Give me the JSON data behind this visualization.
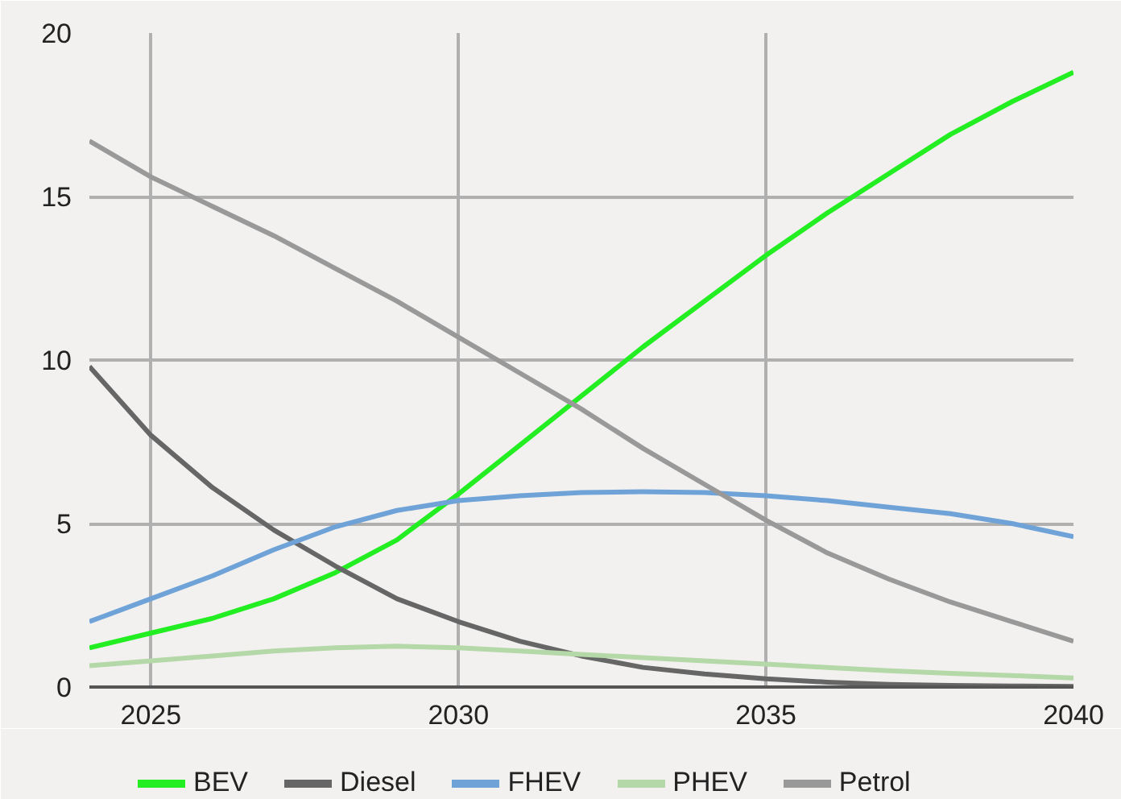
{
  "chart_data": {
    "type": "line",
    "x": [
      2024,
      2025,
      2026,
      2027,
      2028,
      2029,
      2030,
      2031,
      2032,
      2033,
      2034,
      2035,
      2036,
      2037,
      2038,
      2039,
      2040
    ],
    "series": [
      {
        "name": "BEV",
        "color": "#22ee22",
        "values": [
          1.2,
          1.65,
          2.1,
          2.7,
          3.5,
          4.5,
          5.9,
          7.4,
          8.9,
          10.4,
          11.8,
          13.2,
          14.5,
          15.7,
          16.9,
          17.9,
          18.8
        ]
      },
      {
        "name": "Diesel",
        "color": "#666666",
        "values": [
          9.8,
          7.7,
          6.1,
          4.8,
          3.7,
          2.7,
          2.0,
          1.4,
          0.95,
          0.6,
          0.4,
          0.25,
          0.15,
          0.08,
          0.05,
          0.03,
          0.02
        ]
      },
      {
        "name": "FHEV",
        "color": "#6fa3d8",
        "values": [
          2.0,
          2.7,
          3.4,
          4.2,
          4.9,
          5.4,
          5.7,
          5.85,
          5.95,
          5.97,
          5.95,
          5.85,
          5.7,
          5.5,
          5.3,
          5.0,
          4.6
        ]
      },
      {
        "name": "PHEV",
        "color": "#b5d8a8",
        "values": [
          0.65,
          0.8,
          0.95,
          1.1,
          1.2,
          1.25,
          1.2,
          1.1,
          1.0,
          0.9,
          0.8,
          0.7,
          0.6,
          0.5,
          0.42,
          0.35,
          0.28
        ]
      },
      {
        "name": "Petrol",
        "color": "#999999",
        "values": [
          16.7,
          15.6,
          14.7,
          13.8,
          12.8,
          11.8,
          10.7,
          9.6,
          8.5,
          7.3,
          6.2,
          5.1,
          4.1,
          3.3,
          2.6,
          2.0,
          1.4
        ]
      }
    ],
    "xlim": [
      2024,
      2040
    ],
    "xticks": [
      2025,
      2030,
      2035,
      2040
    ],
    "ylim": [
      0,
      20
    ],
    "yticks": [
      0,
      5,
      10,
      15,
      20
    ],
    "grid": true,
    "legend": "bottom",
    "marker": "none",
    "line_style": "solid"
  }
}
